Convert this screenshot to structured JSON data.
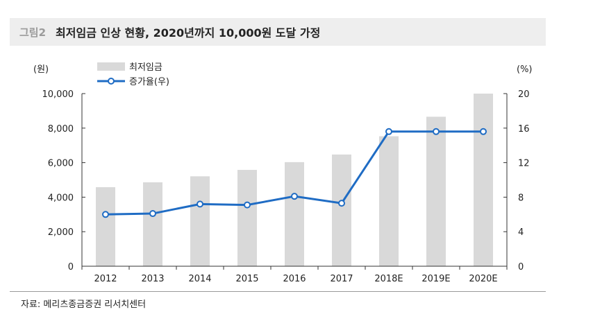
{
  "figure": {
    "label": "그림2",
    "title": "최저임금 인상 현황, 2020년까지 10,000원 도달 가정",
    "source": "자료: 메리츠종금증권 리서치센터"
  },
  "chart_data": {
    "type": "bar",
    "categories": [
      "2012",
      "2013",
      "2014",
      "2015",
      "2016",
      "2017",
      "2018E",
      "2019E",
      "2020E"
    ],
    "series": [
      {
        "name": "최저임금",
        "type": "bar",
        "axis": "left",
        "values": [
          4580,
          4860,
          5210,
          5580,
          6030,
          6470,
          7530,
          8660,
          10000
        ],
        "color": "#d9d9d9"
      },
      {
        "name": "증가율(우)",
        "type": "line",
        "axis": "right",
        "values": [
          6.0,
          6.1,
          7.2,
          7.1,
          8.1,
          7.3,
          15.6,
          15.6,
          15.6
        ],
        "color": "#1f6cc4"
      }
    ],
    "y_left": {
      "unit": "(원)",
      "min": 0,
      "max": 10000,
      "ticks": [
        "0",
        "2,000",
        "4,000",
        "6,000",
        "8,000",
        "10,000"
      ]
    },
    "y_right": {
      "unit": "(%)",
      "min": 0,
      "max": 20,
      "ticks": [
        "0",
        "4",
        "8",
        "12",
        "16",
        "20"
      ]
    },
    "legend_position": "top-left",
    "grid": false
  }
}
